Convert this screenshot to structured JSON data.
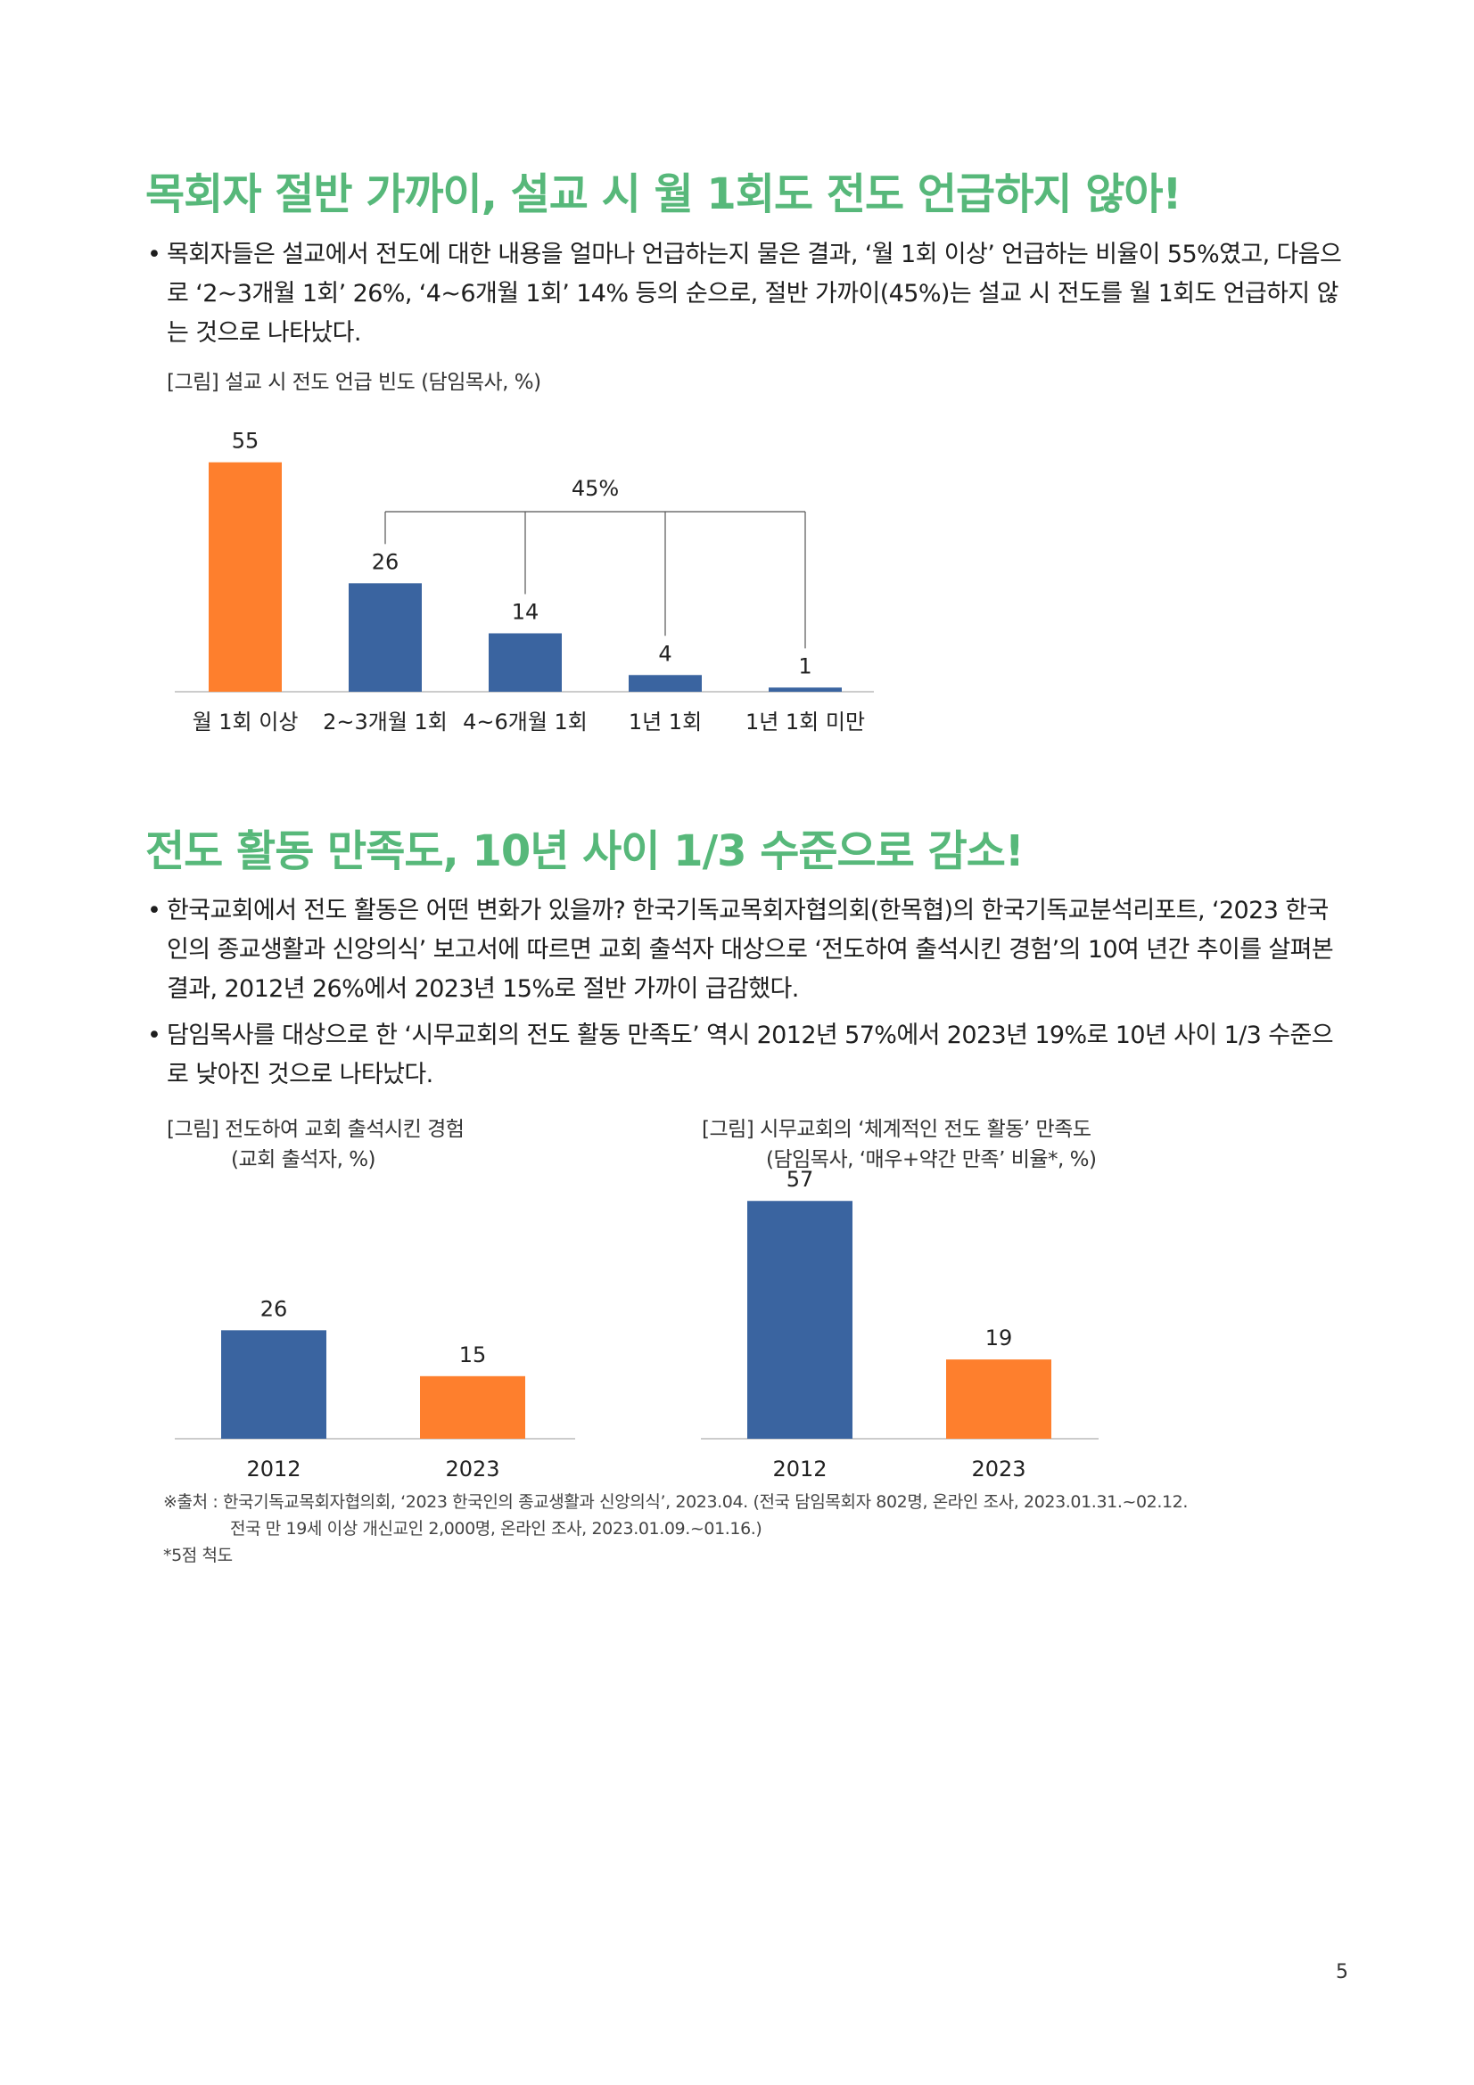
{
  "section1": {
    "heading": "목회자 절반 가까이, 설교 시 월 1회도 전도 언급하지 않아!",
    "bullet": "목회자들은 설교에서 전도에 대한 내용을 얼마나 언급하는지 물은 결과, ‘월 1회 이상’ 언급하는 비율이 55%였고, 다음으로 ‘2~3개월 1회’ 26%, ‘4~6개월 1회’ 14% 등의 순으로, 절반 가까이(45%)는 설교 시 전도를 월 1회도 언급하지 않는 것으로 나타났다.",
    "caption": "[그림] 설교 시 전도 언급 빈도 (담임목사, %)"
  },
  "section2": {
    "heading": "전도 활동 만족도, 10년 사이 1/3 수준으로 감소!",
    "bullet1": "한국교회에서 전도 활동은 어떤 변화가 있을까? 한국기독교목회자협의회(한목협)의 한국기독교분석리포트, ‘2023 한국인의 종교생활과 신앙의식’ 보고서에 따르면 교회 출석자 대상으로 ‘전도하여 출석시킨 경험’의 10여 년간 추이를 살펴본 결과, 2012년 26%에서 2023년 15%로 절반 가까이 급감했다.",
    "bullet2": "담임목사를 대상으로 한 ‘시무교회의 전도 활동 만족도’ 역시 2012년 57%에서 2023년 19%로 10년 사이 1/3 수준으로 낮아진 것으로 나타났다.",
    "caption_left_line1": "[그림] 전도하여 교회 출석시킨 경험",
    "caption_left_line2": "(교회 출석자, %)",
    "caption_right_line1": "[그림] 시무교회의 ‘체계적인 전도 활동’ 만족도",
    "caption_right_line2": "(담임목사, ‘매우+약간 만족’ 비율*, %)"
  },
  "colors": {
    "heading": "#57b87a",
    "orange": "#fe7f2d",
    "blue": "#3a64a0",
    "axis": "#bbbbbb"
  },
  "chart_data": [
    {
      "type": "bar",
      "categories": [
        "월 1회 이상",
        "2~3개월 1회",
        "4~6개월 1회",
        "1년 1회",
        "1년 1회 미만"
      ],
      "values": [
        55,
        26,
        14,
        4,
        1
      ],
      "bar_colors": [
        "orange",
        "blue",
        "blue",
        "blue",
        "blue"
      ],
      "annotation": {
        "label": "45%",
        "spans_categories": [
          "2~3개월 1회",
          "4~6개월 1회",
          "1년 1회",
          "1년 1회 미만"
        ]
      }
    },
    {
      "type": "bar",
      "categories": [
        "2012",
        "2023"
      ],
      "values": [
        26,
        15
      ],
      "bar_colors": [
        "blue",
        "orange"
      ]
    },
    {
      "type": "bar",
      "categories": [
        "2012",
        "2023"
      ],
      "values": [
        57,
        19
      ],
      "bar_colors": [
        "blue",
        "orange"
      ]
    }
  ],
  "source": {
    "line1": "※출처 : 한국기독교목회자협의회, ‘2023 한국인의 종교생활과 신앙의식’, 2023.04. (전국 담임목회자 802명, 온라인 조사, 2023.01.31.~02.12.",
    "line2": "전국 만 19세 이상 개신교인 2,000명, 온라인 조사, 2023.01.09.~01.16.)",
    "note": "*5점 척도"
  },
  "page_number": "5"
}
